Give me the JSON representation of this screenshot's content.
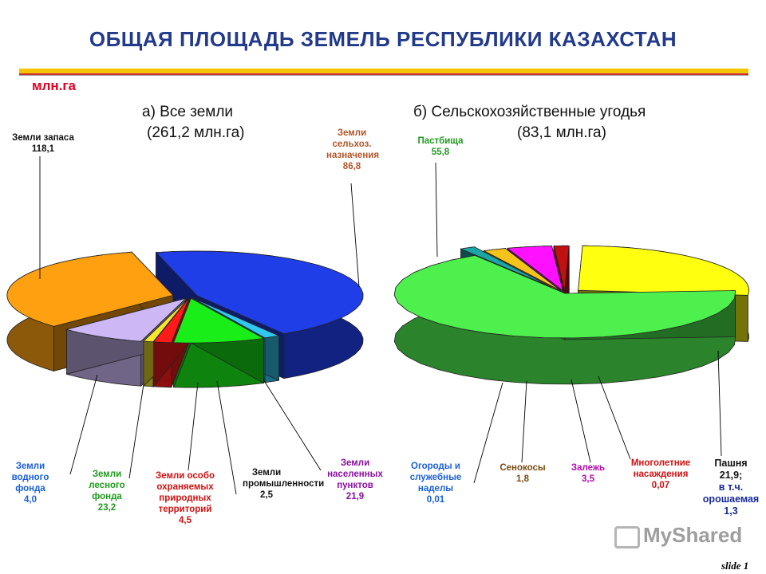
{
  "page": {
    "title": "ОБЩАЯ ПЛОЩАДЬ ЗЕМЕЛЬ РЕСПУБЛИКИ КАЗАХСТАН",
    "unit": "млн.га",
    "watermark": "MyShared",
    "slide": "slide 1"
  },
  "chart_data": [
    {
      "type": "pie",
      "title": "а) Все земли",
      "subtitle": "(261,2 млн.га)",
      "slices": [
        {
          "label": "Земли запаса",
          "value": 118.1,
          "value_text": "118,1",
          "color": "#1f3ee8"
        },
        {
          "label": "Земли водного фонда",
          "value": 4.0,
          "value_text": "4,0",
          "color": "#30c8f0"
        },
        {
          "label": "Земли лесного фонда",
          "value": 23.2,
          "value_text": "23,2",
          "color": "#19ee19"
        },
        {
          "label": "Земли особо охраняемых природных территорий",
          "value": 4.5,
          "value_text": "4,5",
          "color": "#ff1a1a"
        },
        {
          "label": "Земли промышленности",
          "value": 2.5,
          "value_text": "2,5",
          "color": "#f5e629"
        },
        {
          "label": "Земли населенных пунктов",
          "value": 21.9,
          "value_text": "21,9",
          "color": "#cdb8f5"
        },
        {
          "label": "Земли сельхоз. назначения",
          "value": 86.8,
          "value_text": "86,8",
          "color": "#ffa010"
        }
      ]
    },
    {
      "type": "pie",
      "title": "б) Сельскохозяйственные угодья",
      "subtitle": "(83,1 млн.га)",
      "slices": [
        {
          "label": "Пастбища",
          "value": 55.8,
          "value_text": "55,8",
          "color": "#4ef04e"
        },
        {
          "label": "Огороды и служебные наделы",
          "value": 0.01,
          "value_text": "0,01",
          "color": "#1aa6a6"
        },
        {
          "label": "Сенокосы",
          "value": 1.8,
          "value_text": "1,8",
          "color": "#f5c41a"
        },
        {
          "label": "Залежь",
          "value": 3.5,
          "value_text": "3,5",
          "color": "#ff10ff"
        },
        {
          "label": "Многолетние насаждения",
          "value": 0.07,
          "value_text": "0,07",
          "color": "#c01010"
        },
        {
          "label": "Пашня",
          "value": 21.9,
          "value_text": "21,9;",
          "color": "#ffff10"
        }
      ],
      "annotation": {
        "prefix": "в т.ч.",
        "label": "орошаемая",
        "value": "1,3"
      }
    }
  ]
}
